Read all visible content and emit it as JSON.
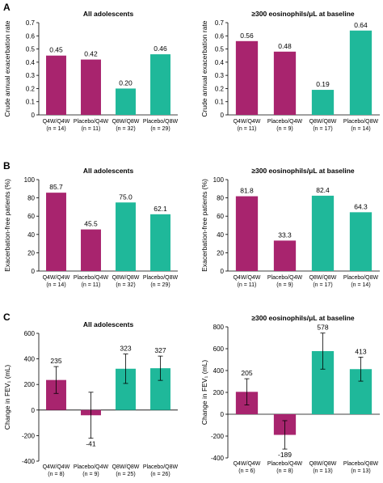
{
  "panels": [
    {
      "letter": "A"
    },
    {
      "letter": "B"
    },
    {
      "letter": "C"
    }
  ],
  "colors": {
    "q4w": "#a8246e",
    "q8w": "#1fb89a",
    "axis": "#000000",
    "error": "#000000"
  },
  "chart_data": [
    {
      "type": "bar",
      "panel": "A",
      "title": "All adolescents",
      "ylabel": "Crude annual exacerbation rate",
      "ylim": [
        0,
        0.7
      ],
      "yticks": [
        "0",
        "0.1",
        "0.2",
        "0.3",
        "0.4",
        "0.5",
        "0.6",
        "0.7"
      ],
      "categories": [
        "Q4W/Q4W",
        "Placebo/Q4W",
        "Q8W/Q8W",
        "Placebo/Q8W"
      ],
      "n_labels": [
        "(n = 14)",
        "(n = 11)",
        "(n = 32)",
        "(n = 29)"
      ],
      "values": [
        0.45,
        0.42,
        0.2,
        0.46
      ],
      "value_labels": [
        "0.45",
        "0.42",
        "0.20",
        "0.46"
      ],
      "bar_colors": [
        "#a8246e",
        "#a8246e",
        "#1fb89a",
        "#1fb89a"
      ]
    },
    {
      "type": "bar",
      "panel": "A",
      "title": "≥300 eosinophils/μL at baseline",
      "ylabel": "Crude annual exacerbation rate",
      "ylim": [
        0,
        0.7
      ],
      "yticks": [
        "0",
        "0.1",
        "0.2",
        "0.3",
        "0.4",
        "0.5",
        "0.6",
        "0.7"
      ],
      "categories": [
        "Q4W/Q4W",
        "Placebo/Q4W",
        "Q8W/Q8W",
        "Placebo/Q8W"
      ],
      "n_labels": [
        "(n = 11)",
        "(n = 9)",
        "(n = 17)",
        "(n = 14)"
      ],
      "values": [
        0.56,
        0.48,
        0.19,
        0.64
      ],
      "value_labels": [
        "0.56",
        "0.48",
        "0.19",
        "0.64"
      ],
      "bar_colors": [
        "#a8246e",
        "#a8246e",
        "#1fb89a",
        "#1fb89a"
      ]
    },
    {
      "type": "bar",
      "panel": "B",
      "title": "All adolescents",
      "ylabel": "Exacerbation-free patients (%)",
      "ylim": [
        0,
        100
      ],
      "yticks": [
        "0",
        "20",
        "40",
        "60",
        "80",
        "100"
      ],
      "categories": [
        "Q4W/Q4W",
        "Placebo/Q4W",
        "Q8W/Q8W",
        "Placebo/Q8W"
      ],
      "n_labels": [
        "(n = 14)",
        "(n = 11)",
        "(n = 32)",
        "(n = 29)"
      ],
      "values": [
        85.7,
        45.5,
        75.0,
        62.1
      ],
      "value_labels": [
        "85.7",
        "45.5",
        "75.0",
        "62.1"
      ],
      "bar_colors": [
        "#a8246e",
        "#a8246e",
        "#1fb89a",
        "#1fb89a"
      ]
    },
    {
      "type": "bar",
      "panel": "B",
      "title": "≥300 eosinophils/μL at baseline",
      "ylabel": "Exacerbation-free patients (%)",
      "ylim": [
        0,
        100
      ],
      "yticks": [
        "0",
        "20",
        "40",
        "60",
        "80",
        "100"
      ],
      "categories": [
        "Q4W/Q4W",
        "Placebo/Q4W",
        "Q8W/Q8W",
        "Placebo/Q8W"
      ],
      "n_labels": [
        "(n = 11)",
        "(n = 9)",
        "(n = 17)",
        "(n = 14)"
      ],
      "values": [
        81.8,
        33.3,
        82.4,
        64.3
      ],
      "value_labels": [
        "81.8",
        "33.3",
        "82.4",
        "64.3"
      ],
      "bar_colors": [
        "#a8246e",
        "#a8246e",
        "#1fb89a",
        "#1fb89a"
      ]
    },
    {
      "type": "bar",
      "panel": "C",
      "title": "All adolescents",
      "ylabel": "Change in FEV₁ (mL)",
      "ylim": [
        -400,
        600
      ],
      "yticks": [
        "-400",
        "-200",
        "0",
        "200",
        "400",
        "600"
      ],
      "categories": [
        "Q4W/Q4W",
        "Placebo/Q4W",
        "Q8W/Q8W",
        "Placebo/Q8W"
      ],
      "n_labels": [
        "(n = 8)",
        "(n = 9)",
        "(n = 25)",
        "(n = 26)"
      ],
      "values": [
        235,
        -41,
        323,
        327
      ],
      "value_labels": [
        "235",
        "-41",
        "323",
        "327"
      ],
      "errors": [
        105,
        180,
        115,
        95
      ],
      "bar_colors": [
        "#a8246e",
        "#a8246e",
        "#1fb89a",
        "#1fb89a"
      ]
    },
    {
      "type": "bar",
      "panel": "C",
      "title": "≥300 eosinophils/μL at baseline",
      "ylabel": "Change in FEV₁ (mL)",
      "ylim": [
        -400,
        800
      ],
      "yticks": [
        "-400",
        "-200",
        "0",
        "200",
        "400",
        "600",
        "800"
      ],
      "categories": [
        "Q4W/Q4W",
        "Placebo/Q4W",
        "Q8W/Q8W",
        "Placebo/Q8W"
      ],
      "n_labels": [
        "(n = 6)",
        "(n = 8)",
        "(n = 13)",
        "(n = 13)"
      ],
      "values": [
        205,
        -189,
        578,
        413
      ],
      "value_labels": [
        "205",
        "-189",
        "578",
        "413"
      ],
      "errors": [
        120,
        130,
        165,
        110
      ],
      "bar_colors": [
        "#a8246e",
        "#a8246e",
        "#1fb89a",
        "#1fb89a"
      ]
    }
  ]
}
